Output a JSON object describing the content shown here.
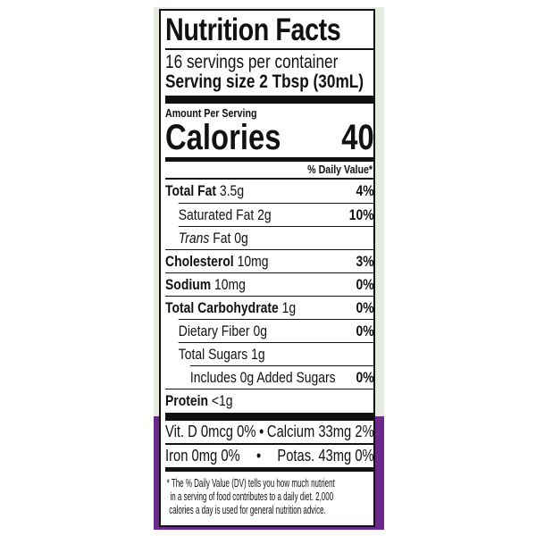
{
  "label": {
    "title": "Nutrition Facts",
    "servings": "16 servings per container",
    "serving_size": "Serving size 2 Tbsp (30mL)",
    "amount_per_serving": "Amount Per Serving",
    "calories_label": "Calories",
    "calories_value": "40",
    "daily_value_header": "% Daily Value*",
    "nutrients": [
      {
        "name": "Total Fat",
        "amount": "3.5g",
        "dv": "4%",
        "bold": true,
        "indent": 0
      },
      {
        "name": "Saturated Fat",
        "amount": "2g",
        "dv": "10%",
        "bold": false,
        "indent": 1
      },
      {
        "name": "Trans",
        "name_suffix": "Fat",
        "amount": "0g",
        "dv": "",
        "bold": false,
        "indent": 1
      },
      {
        "name": "Cholesterol",
        "amount": "10mg",
        "dv": "3%",
        "bold": true,
        "indent": 0
      },
      {
        "name": "Sodium",
        "amount": "10mg",
        "dv": "0%",
        "bold": true,
        "indent": 0
      },
      {
        "name": "Total Carbohydrate",
        "amount": "1g",
        "dv": "0%",
        "bold": true,
        "indent": 0
      },
      {
        "name": "Dietary Fiber",
        "amount": "0g",
        "dv": "0%",
        "bold": false,
        "indent": 1
      },
      {
        "name": "Total Sugars",
        "amount": "1g",
        "dv": "",
        "bold": false,
        "indent": 1
      },
      {
        "name": "Includes 0g Added Sugars",
        "amount": "",
        "dv": "0%",
        "bold": false,
        "indent": 2
      },
      {
        "name": "Protein",
        "amount": "<1g",
        "dv": "",
        "bold": true,
        "indent": 0
      }
    ],
    "vitamins": [
      {
        "left": "Vit. D 0mcg 0%",
        "bullet": "•",
        "right": "Calcium 33mg 2%"
      },
      {
        "left": "Iron 0mg 0%",
        "bullet": "•",
        "right": "Potas. 43mg 0%"
      }
    ],
    "footnote": [
      "* The % Daily Value (DV) tells you how much nutrient",
      "in a serving of food contributes to a daily diet. 2,000",
      "calories a day is used for general nutrition advice."
    ]
  },
  "colors": {
    "background_green": "#e4ece2",
    "background_purple": "#6a2a8c",
    "ink": "#111111"
  }
}
